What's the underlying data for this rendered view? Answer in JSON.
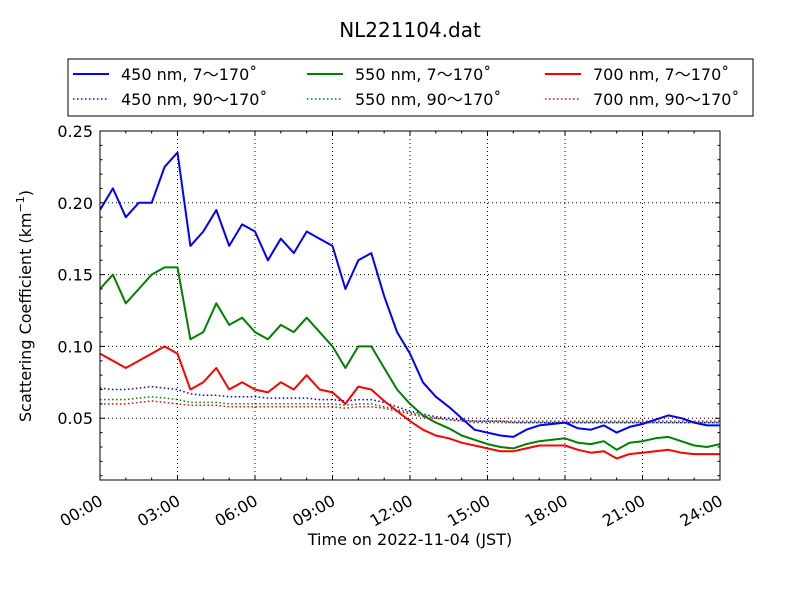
{
  "chart_data": {
    "type": "line",
    "title": "NL221104.dat",
    "xlabel": "Time on 2022-11-04 (JST)",
    "ylabel": "Scattering Coefficient (km",
    "ylabel_sup": "−1",
    "ylabel_end": ")",
    "xlim": [
      "00:00",
      "24:00"
    ],
    "ylim": [
      0.007,
      0.25
    ],
    "grid": true,
    "legend_position": "top",
    "x_ticks": [
      "00:00",
      "03:00",
      "06:00",
      "09:00",
      "12:00",
      "15:00",
      "18:00",
      "21:00",
      "24:00"
    ],
    "y_ticks": [
      "0.05",
      "0.10",
      "0.15",
      "0.20",
      "0.25"
    ],
    "y_tick_values": [
      0.05,
      0.1,
      0.15,
      0.2,
      0.25
    ],
    "x": [
      "00:00",
      "00:30",
      "01:00",
      "01:30",
      "02:00",
      "02:30",
      "03:00",
      "03:30",
      "04:00",
      "04:30",
      "05:00",
      "05:30",
      "06:00",
      "06:30",
      "07:00",
      "07:30",
      "08:00",
      "08:30",
      "09:00",
      "09:30",
      "10:00",
      "10:30",
      "11:00",
      "11:30",
      "12:00",
      "12:30",
      "13:00",
      "13:30",
      "14:00",
      "14:30",
      "15:00",
      "15:30",
      "16:00",
      "16:30",
      "17:00",
      "17:30",
      "18:00",
      "18:30",
      "19:00",
      "19:30",
      "20:00",
      "20:30",
      "21:00",
      "21:30",
      "22:00",
      "22:30",
      "23:00",
      "23:30",
      "24:00"
    ],
    "series": [
      {
        "name": "450 nm, 7～170˚",
        "color": "#0000ff",
        "style": "solid",
        "values": [
          0.195,
          0.21,
          0.19,
          0.2,
          0.2,
          0.225,
          0.235,
          0.17,
          0.18,
          0.195,
          0.17,
          0.185,
          0.18,
          0.16,
          0.175,
          0.165,
          0.18,
          0.175,
          0.17,
          0.14,
          0.16,
          0.165,
          0.135,
          0.11,
          0.095,
          0.075,
          0.065,
          0.058,
          0.05,
          0.042,
          0.04,
          0.038,
          0.037,
          0.042,
          0.045,
          0.046,
          0.047,
          0.043,
          0.042,
          0.045,
          0.04,
          0.044,
          0.046,
          0.049,
          0.052,
          0.05,
          0.047,
          0.045,
          0.045
        ]
      },
      {
        "name": "550 nm, 7～170˚",
        "color": "#008000",
        "style": "solid",
        "values": [
          0.14,
          0.15,
          0.13,
          0.14,
          0.15,
          0.155,
          0.155,
          0.105,
          0.11,
          0.13,
          0.115,
          0.12,
          0.11,
          0.105,
          0.115,
          0.11,
          0.12,
          0.11,
          0.1,
          0.085,
          0.1,
          0.1,
          0.085,
          0.07,
          0.06,
          0.052,
          0.047,
          0.043,
          0.038,
          0.035,
          0.032,
          0.03,
          0.029,
          0.032,
          0.034,
          0.035,
          0.036,
          0.033,
          0.032,
          0.034,
          0.028,
          0.033,
          0.034,
          0.036,
          0.037,
          0.034,
          0.031,
          0.03,
          0.032
        ]
      },
      {
        "name": "700 nm, 7～170˚",
        "color": "#ff0000",
        "style": "solid",
        "values": [
          0.095,
          0.09,
          0.085,
          0.09,
          0.095,
          0.1,
          0.095,
          0.07,
          0.075,
          0.085,
          0.07,
          0.075,
          0.07,
          0.068,
          0.075,
          0.07,
          0.08,
          0.07,
          0.068,
          0.06,
          0.072,
          0.07,
          0.062,
          0.055,
          0.048,
          0.042,
          0.038,
          0.036,
          0.033,
          0.031,
          0.029,
          0.027,
          0.027,
          0.029,
          0.031,
          0.031,
          0.031,
          0.028,
          0.026,
          0.027,
          0.022,
          0.025,
          0.026,
          0.027,
          0.028,
          0.026,
          0.025,
          0.025,
          0.025
        ]
      },
      {
        "name": "450 nm, 90～170˚",
        "color": "#0000ff",
        "style": "dotted",
        "values": [
          0.071,
          0.07,
          0.07,
          0.071,
          0.072,
          0.071,
          0.07,
          0.067,
          0.066,
          0.066,
          0.065,
          0.065,
          0.065,
          0.064,
          0.064,
          0.064,
          0.064,
          0.063,
          0.063,
          0.062,
          0.063,
          0.063,
          0.061,
          0.058,
          0.055,
          0.053,
          0.051,
          0.05,
          0.049,
          0.048,
          0.048,
          0.048,
          0.047,
          0.047,
          0.047,
          0.047,
          0.047,
          0.047,
          0.047,
          0.047,
          0.047,
          0.047,
          0.047,
          0.047,
          0.047,
          0.047,
          0.047,
          0.047,
          0.047
        ]
      },
      {
        "name": "550 nm, 90～170˚",
        "color": "#008000",
        "style": "dotted",
        "values": [
          0.063,
          0.063,
          0.063,
          0.064,
          0.065,
          0.064,
          0.063,
          0.061,
          0.061,
          0.061,
          0.06,
          0.06,
          0.06,
          0.06,
          0.06,
          0.06,
          0.06,
          0.06,
          0.06,
          0.059,
          0.06,
          0.06,
          0.058,
          0.056,
          0.054,
          0.052,
          0.05,
          0.049,
          0.048,
          0.047,
          0.047,
          0.047,
          0.047,
          0.047,
          0.047,
          0.047,
          0.047,
          0.047,
          0.047,
          0.047,
          0.047,
          0.047,
          0.047,
          0.047,
          0.047,
          0.047,
          0.047,
          0.047,
          0.047
        ]
      },
      {
        "name": "700 nm, 90～170˚",
        "color": "#ff0000",
        "style": "dotted",
        "values": [
          0.06,
          0.06,
          0.06,
          0.061,
          0.062,
          0.061,
          0.06,
          0.059,
          0.059,
          0.059,
          0.058,
          0.058,
          0.058,
          0.058,
          0.058,
          0.058,
          0.058,
          0.058,
          0.058,
          0.057,
          0.058,
          0.058,
          0.057,
          0.055,
          0.053,
          0.051,
          0.05,
          0.049,
          0.048,
          0.048,
          0.048,
          0.048,
          0.048,
          0.048,
          0.048,
          0.048,
          0.048,
          0.048,
          0.048,
          0.048,
          0.048,
          0.048,
          0.048,
          0.048,
          0.048,
          0.048,
          0.048,
          0.048,
          0.048
        ]
      }
    ]
  }
}
